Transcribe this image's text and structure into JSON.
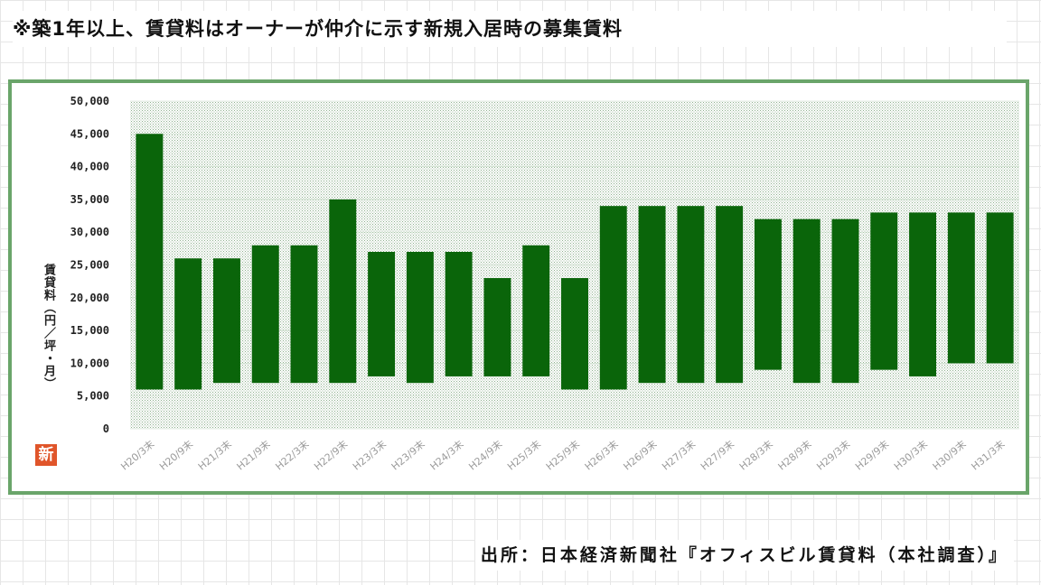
{
  "header": {
    "note": "※築1年以上、賃貸料はオーナーが仲介に示す新規入居時の募集賃料"
  },
  "footer": {
    "source": "出所：日本経済新聞社『オフィスビル賃貸料（本社調査）』"
  },
  "logo": {
    "text": "新",
    "color": "#e0552a"
  },
  "chart_data": {
    "type": "bar",
    "subtype": "floating-range",
    "ylabel": "賃貸料（円／坪・月）",
    "ylim": [
      0,
      50000
    ],
    "yticks": [
      "0",
      "5,000",
      "10,000",
      "15,000",
      "20,000",
      "25,000",
      "30,000",
      "35,000",
      "40,000",
      "45,000",
      "50,000"
    ],
    "categories": [
      "H20/3末",
      "H20/9末",
      "H21/3末",
      "H21/9末",
      "H22/3末",
      "H22/9末",
      "H23/3末",
      "H23/9末",
      "H24/3末",
      "H24/9末",
      "H25/3末",
      "H25/9末",
      "H26/3末",
      "H26/9末",
      "H27/3末",
      "H27/9末",
      "H28/3末",
      "H28/9末",
      "H29/3末",
      "H29/9末",
      "H30/3末",
      "H30/9末",
      "H31/3末"
    ],
    "series": [
      {
        "low": [
          6000,
          6000,
          7000,
          7000,
          7000,
          7000,
          8000,
          7000,
          8000,
          8000,
          8000,
          6000,
          6000,
          7000,
          7000,
          7000,
          9000,
          7000,
          7000,
          9000,
          8000,
          10000,
          10000
        ],
        "high": [
          45000,
          26000,
          26000,
          28000,
          28000,
          35000,
          27000,
          27000,
          27000,
          23000,
          28000,
          23000,
          34000,
          34000,
          34000,
          34000,
          32000,
          32000,
          32000,
          33000,
          33000,
          33000,
          33000
        ]
      }
    ],
    "colors": {
      "bar": "#0a650a",
      "frame": "#6aa56a",
      "plot_dots": "#8fb08f"
    },
    "grid": true,
    "legend": "none"
  }
}
